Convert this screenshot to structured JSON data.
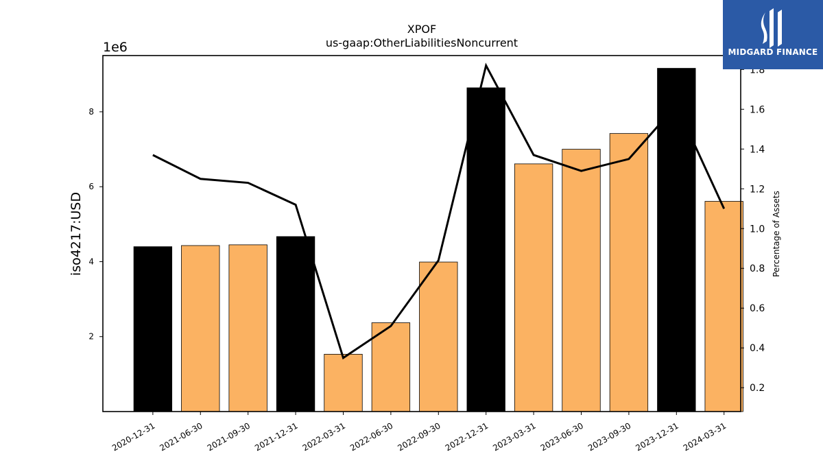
{
  "chart_data": {
    "type": "bar",
    "title": "XPOF",
    "subtitle": "us-gaap:OtherLiabilitiesNoncurrent",
    "ylabel": "iso4217:USD",
    "y2label": "Percentage of Assets",
    "y_offset_label": "1e6",
    "categories": [
      "2020-12-31",
      "2021-06-30",
      "2021-09-30",
      "2021-12-31",
      "2022-03-31",
      "2022-06-30",
      "2022-09-30",
      "2022-12-31",
      "2023-03-31",
      "2023-06-30",
      "2023-09-30",
      "2023-12-31",
      "2024-03-31"
    ],
    "values": [
      4400000,
      4430000,
      4450000,
      4670000,
      1530000,
      2370000,
      3990000,
      8640000,
      6610000,
      7000000,
      7420000,
      9160000,
      5610000
    ],
    "bar_colors": [
      "#000000",
      "#fbb262",
      "#fbb262",
      "#000000",
      "#fbb262",
      "#fbb262",
      "#fbb262",
      "#000000",
      "#fbb262",
      "#fbb262",
      "#fbb262",
      "#000000",
      "#fbb262"
    ],
    "line_values": [
      1.37,
      1.25,
      1.23,
      1.12,
      0.35,
      0.51,
      0.84,
      1.82,
      1.37,
      1.29,
      1.35,
      1.62,
      1.1
    ],
    "line_color": "#000000",
    "ylim": [
      0,
      9500000
    ],
    "y_ticks": [
      2,
      4,
      6,
      8
    ],
    "y2lim": [
      0.08,
      1.87
    ],
    "y2_ticks": [
      "0.2",
      "0.4",
      "0.6",
      "0.8",
      "1.0",
      "1.2",
      "1.4",
      "1.6",
      "1.8"
    ],
    "grid": false
  },
  "logo": {
    "text": "MIDGARD FINANCE",
    "background": "#2b5aa6"
  }
}
